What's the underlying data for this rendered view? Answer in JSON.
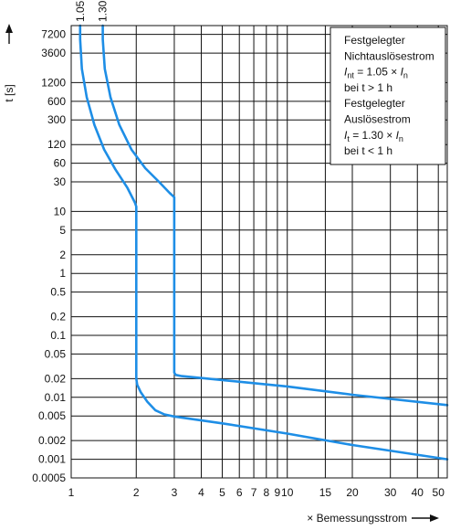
{
  "chart_data": {
    "type": "line",
    "title": "",
    "xlabel": "× Bemessungsstrom",
    "ylabel": "t [s]",
    "x_scale": "log",
    "y_scale": "log",
    "xlim": [
      1,
      55
    ],
    "ylim": [
      0.0005,
      10000
    ],
    "x_ticks": [
      1,
      2,
      3,
      4,
      5,
      6,
      7,
      8,
      9,
      10,
      15,
      20,
      30,
      40,
      50
    ],
    "x_tick_labels": [
      "1",
      "2",
      "3",
      "4",
      "5",
      "6",
      "7",
      "8",
      "9",
      "10",
      "15",
      "20",
      "30",
      "40",
      "50"
    ],
    "y_ticks": [
      0.0005,
      0.001,
      0.002,
      0.005,
      0.01,
      0.02,
      0.05,
      0.1,
      0.2,
      0.5,
      1,
      2,
      5,
      10,
      30,
      60,
      120,
      300,
      600,
      1200,
      3600,
      7200
    ],
    "y_tick_labels": [
      "0.0005",
      "0.001",
      "0.002",
      "0.005",
      "0.01",
      "0.02",
      "0.05",
      "0.1",
      "0.2",
      "0.5",
      "1",
      "2",
      "5",
      "10",
      "30",
      "60",
      "120",
      "300",
      "600",
      "1200",
      "3600",
      "7200"
    ],
    "top_labels": [
      "1.05",
      "1.30"
    ],
    "grid": true,
    "series": [
      {
        "color": "#1e8ee6",
        "points": [
          [
            1.1,
            10000
          ],
          [
            1.1,
            6000
          ],
          [
            1.12,
            2000
          ],
          [
            1.18,
            700
          ],
          [
            1.28,
            250
          ],
          [
            1.42,
            100
          ],
          [
            1.6,
            48
          ],
          [
            1.82,
            24
          ],
          [
            1.97,
            14
          ],
          [
            2.0,
            12
          ],
          [
            2.0,
            0.02
          ],
          [
            2.02,
            0.016
          ],
          [
            2.1,
            0.012
          ],
          [
            2.25,
            0.0085
          ],
          [
            2.45,
            0.0062
          ],
          [
            2.7,
            0.0053
          ],
          [
            3.0,
            0.0049
          ],
          [
            5.0,
            0.0038
          ],
          [
            10,
            0.0026
          ],
          [
            20,
            0.0017
          ],
          [
            55,
            0.001
          ]
        ]
      },
      {
        "color": "#1e8ee6",
        "points": [
          [
            1.4,
            10000
          ],
          [
            1.4,
            6000
          ],
          [
            1.43,
            2000
          ],
          [
            1.52,
            700
          ],
          [
            1.67,
            250
          ],
          [
            1.9,
            100
          ],
          [
            2.2,
            50
          ],
          [
            2.55,
            30
          ],
          [
            2.85,
            20
          ],
          [
            3.0,
            17
          ],
          [
            3.0,
            0.025
          ],
          [
            3.05,
            0.023
          ],
          [
            3.25,
            0.022
          ],
          [
            5.0,
            0.019
          ],
          [
            10,
            0.015
          ],
          [
            20,
            0.011
          ],
          [
            55,
            0.0075
          ]
        ]
      }
    ],
    "legend": {
      "position": "top-right",
      "lines": [
        {
          "text": "Festgelegter"
        },
        {
          "text": "Nichtauslösestrom"
        },
        {
          "main": "I",
          "sub": "nt",
          "rest": " = 1.05 × ",
          "main2": "I",
          "sub2": "n"
        },
        {
          "text": "bei t > 1 h"
        },
        {
          "text": "Festgelegter"
        },
        {
          "text": "Auslösestrom"
        },
        {
          "main": "I",
          "sub": "t",
          "rest": " = 1.30 × ",
          "main2": "I",
          "sub2": "n"
        },
        {
          "text": "bei t < 1 h"
        }
      ]
    }
  }
}
